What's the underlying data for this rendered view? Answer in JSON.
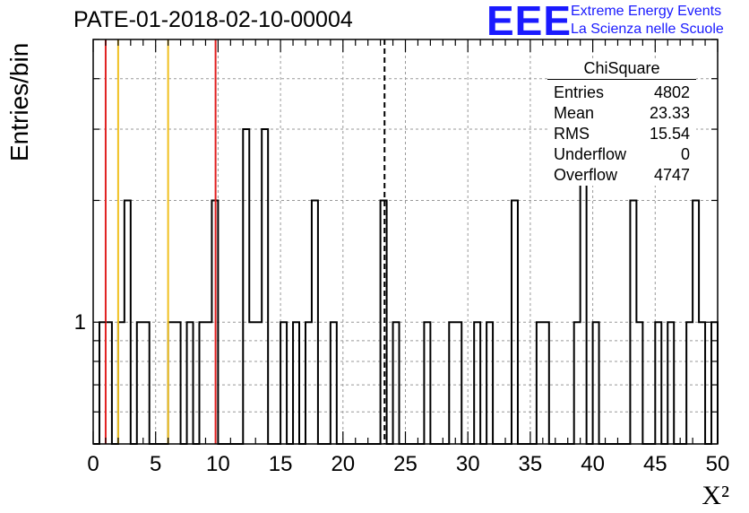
{
  "header": {
    "title": "PATE-01-2018-02-10-00004",
    "logo_text": "EEE",
    "logo_line1": "Extreme Energy Events",
    "logo_line2": "La Scienza nelle Scuole"
  },
  "stats": {
    "title": "ChiSquare",
    "rows": [
      {
        "label": "Entries",
        "value": "4802"
      },
      {
        "label": "Mean",
        "value": "23.33"
      },
      {
        "label": "RMS",
        "value": "15.54"
      },
      {
        "label": "Underflow",
        "value": "0"
      },
      {
        "label": "Overflow",
        "value": "4747"
      }
    ]
  },
  "chart_data": {
    "type": "histogram",
    "xlabel": "X²",
    "ylabel": "Entries/bin",
    "xlim": [
      0,
      50
    ],
    "ylim_log": [
      0.5,
      5
    ],
    "y_scale": "log",
    "x_ticks": [
      0,
      5,
      10,
      15,
      20,
      25,
      30,
      35,
      40,
      45,
      50
    ],
    "y_tick_labels": [
      {
        "value": 1,
        "label": "1"
      }
    ],
    "grid": true,
    "bin_width": 0.5,
    "bins": [
      {
        "x": 0.5,
        "count": 1
      },
      {
        "x": 1.0,
        "count": 1
      },
      {
        "x": 2.0,
        "count": 1
      },
      {
        "x": 2.5,
        "count": 2
      },
      {
        "x": 3.5,
        "count": 1
      },
      {
        "x": 4.0,
        "count": 1
      },
      {
        "x": 6.0,
        "count": 1
      },
      {
        "x": 6.5,
        "count": 1
      },
      {
        "x": 7.5,
        "count": 1
      },
      {
        "x": 8.5,
        "count": 1
      },
      {
        "x": 9.0,
        "count": 1
      },
      {
        "x": 9.5,
        "count": 2
      },
      {
        "x": 12.0,
        "count": 3
      },
      {
        "x": 12.5,
        "count": 1
      },
      {
        "x": 13.0,
        "count": 1
      },
      {
        "x": 13.5,
        "count": 3
      },
      {
        "x": 15.0,
        "count": 1
      },
      {
        "x": 16.0,
        "count": 1
      },
      {
        "x": 17.0,
        "count": 1
      },
      {
        "x": 17.5,
        "count": 2
      },
      {
        "x": 19.0,
        "count": 1
      },
      {
        "x": 23.0,
        "count": 2
      },
      {
        "x": 24.0,
        "count": 1
      },
      {
        "x": 26.5,
        "count": 1
      },
      {
        "x": 28.5,
        "count": 1
      },
      {
        "x": 29.0,
        "count": 1
      },
      {
        "x": 30.5,
        "count": 1
      },
      {
        "x": 31.5,
        "count": 1
      },
      {
        "x": 33.5,
        "count": 2
      },
      {
        "x": 35.5,
        "count": 1
      },
      {
        "x": 36.0,
        "count": 1
      },
      {
        "x": 38.5,
        "count": 1
      },
      {
        "x": 39.0,
        "count": 3
      },
      {
        "x": 40.0,
        "count": 1
      },
      {
        "x": 43.0,
        "count": 2
      },
      {
        "x": 43.5,
        "count": 1
      },
      {
        "x": 45.0,
        "count": 1
      },
      {
        "x": 46.0,
        "count": 1
      },
      {
        "x": 47.5,
        "count": 1
      },
      {
        "x": 48.0,
        "count": 2
      },
      {
        "x": 48.5,
        "count": 1
      },
      {
        "x": 49.5,
        "count": 1
      }
    ],
    "lines": [
      {
        "x": 1.0,
        "color": "#e02020",
        "style": "solid"
      },
      {
        "x": 2.0,
        "color": "#f0c020",
        "style": "solid"
      },
      {
        "x": 6.0,
        "color": "#f0c020",
        "style": "solid"
      },
      {
        "x": 9.8,
        "color": "#e02020",
        "style": "solid"
      },
      {
        "x": 23.33,
        "color": "#000000",
        "style": "dashed"
      }
    ]
  }
}
